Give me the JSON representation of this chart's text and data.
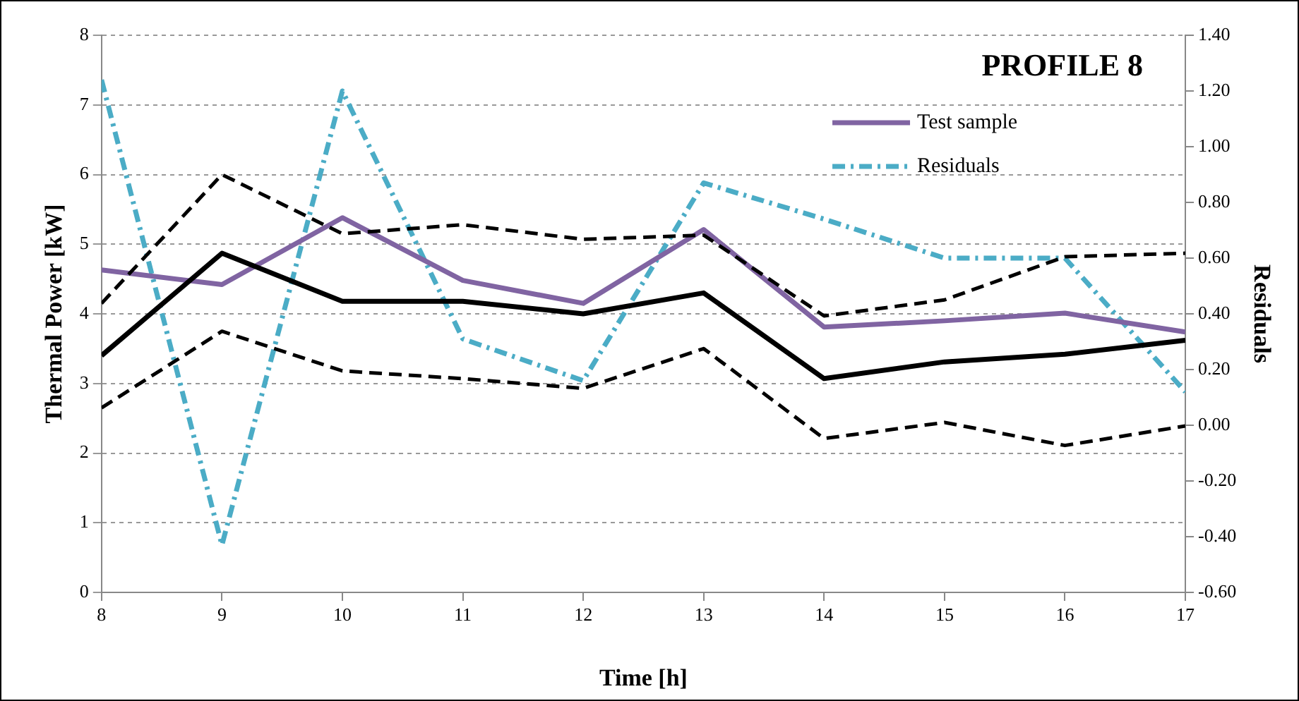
{
  "chart_data": {
    "type": "line",
    "title": "PROFILE 8",
    "xlabel": "Time [h]",
    "ylabel": "Thermal Power [kW]",
    "y2label": "Residuals",
    "x": [
      8,
      9,
      10,
      11,
      12,
      13,
      14,
      15,
      16,
      17
    ],
    "xlim": [
      8,
      17
    ],
    "xticks": [
      8,
      9,
      10,
      11,
      12,
      13,
      14,
      15,
      16,
      17
    ],
    "ylim": [
      0,
      8
    ],
    "yticks": [
      0,
      1,
      2,
      3,
      4,
      5,
      6,
      7,
      8
    ],
    "y2lim": [
      -0.6,
      1.4
    ],
    "y2ticks": [
      {
        "value": -0.6,
        "label": "-0.60"
      },
      {
        "value": -0.4,
        "label": "-0.40"
      },
      {
        "value": -0.2,
        "label": "-0.20"
      },
      {
        "value": 0,
        "label": "0.00"
      },
      {
        "value": 0.2,
        "label": "0.20"
      },
      {
        "value": 0.4,
        "label": "0.40"
      },
      {
        "value": 0.6,
        "label": "0.60"
      },
      {
        "value": 0.8,
        "label": "0.80"
      },
      {
        "value": 1,
        "label": "1.00"
      },
      {
        "value": 1.2,
        "label": "1.20"
      },
      {
        "value": 1.4,
        "label": "1.40"
      }
    ],
    "grid": "y",
    "legend": "top right",
    "marker": "none",
    "series": [
      {
        "color": "#000000",
        "line_style": "dashed",
        "values": [
          4.15,
          6.0,
          5.15,
          5.28,
          5.07,
          5.13,
          3.97,
          4.2,
          4.82,
          4.87
        ]
      },
      {
        "color": "#000000",
        "line_style": "dashed",
        "values": [
          2.65,
          3.75,
          3.18,
          3.07,
          2.93,
          3.5,
          2.21,
          2.44,
          2.11,
          2.39
        ]
      },
      {
        "color": "#000000",
        "line_style": "solid",
        "values": [
          3.4,
          4.87,
          4.18,
          4.18,
          4.0,
          4.3,
          3.07,
          3.31,
          3.42,
          3.62
        ]
      },
      {
        "name": "Test sample",
        "color": "#8064a2",
        "line_style": "solid",
        "values": [
          4.63,
          4.42,
          5.38,
          4.48,
          4.15,
          5.21,
          3.81,
          3.9,
          4.01,
          3.74
        ]
      },
      {
        "name": "Residuals",
        "color": "#4bacc6",
        "line_style": "dashdot",
        "axis": "y2",
        "values": [
          1.24,
          -0.43,
          1.2,
          0.31,
          0.16,
          0.87,
          0.74,
          0.6,
          0.6,
          0.12
        ]
      }
    ]
  }
}
